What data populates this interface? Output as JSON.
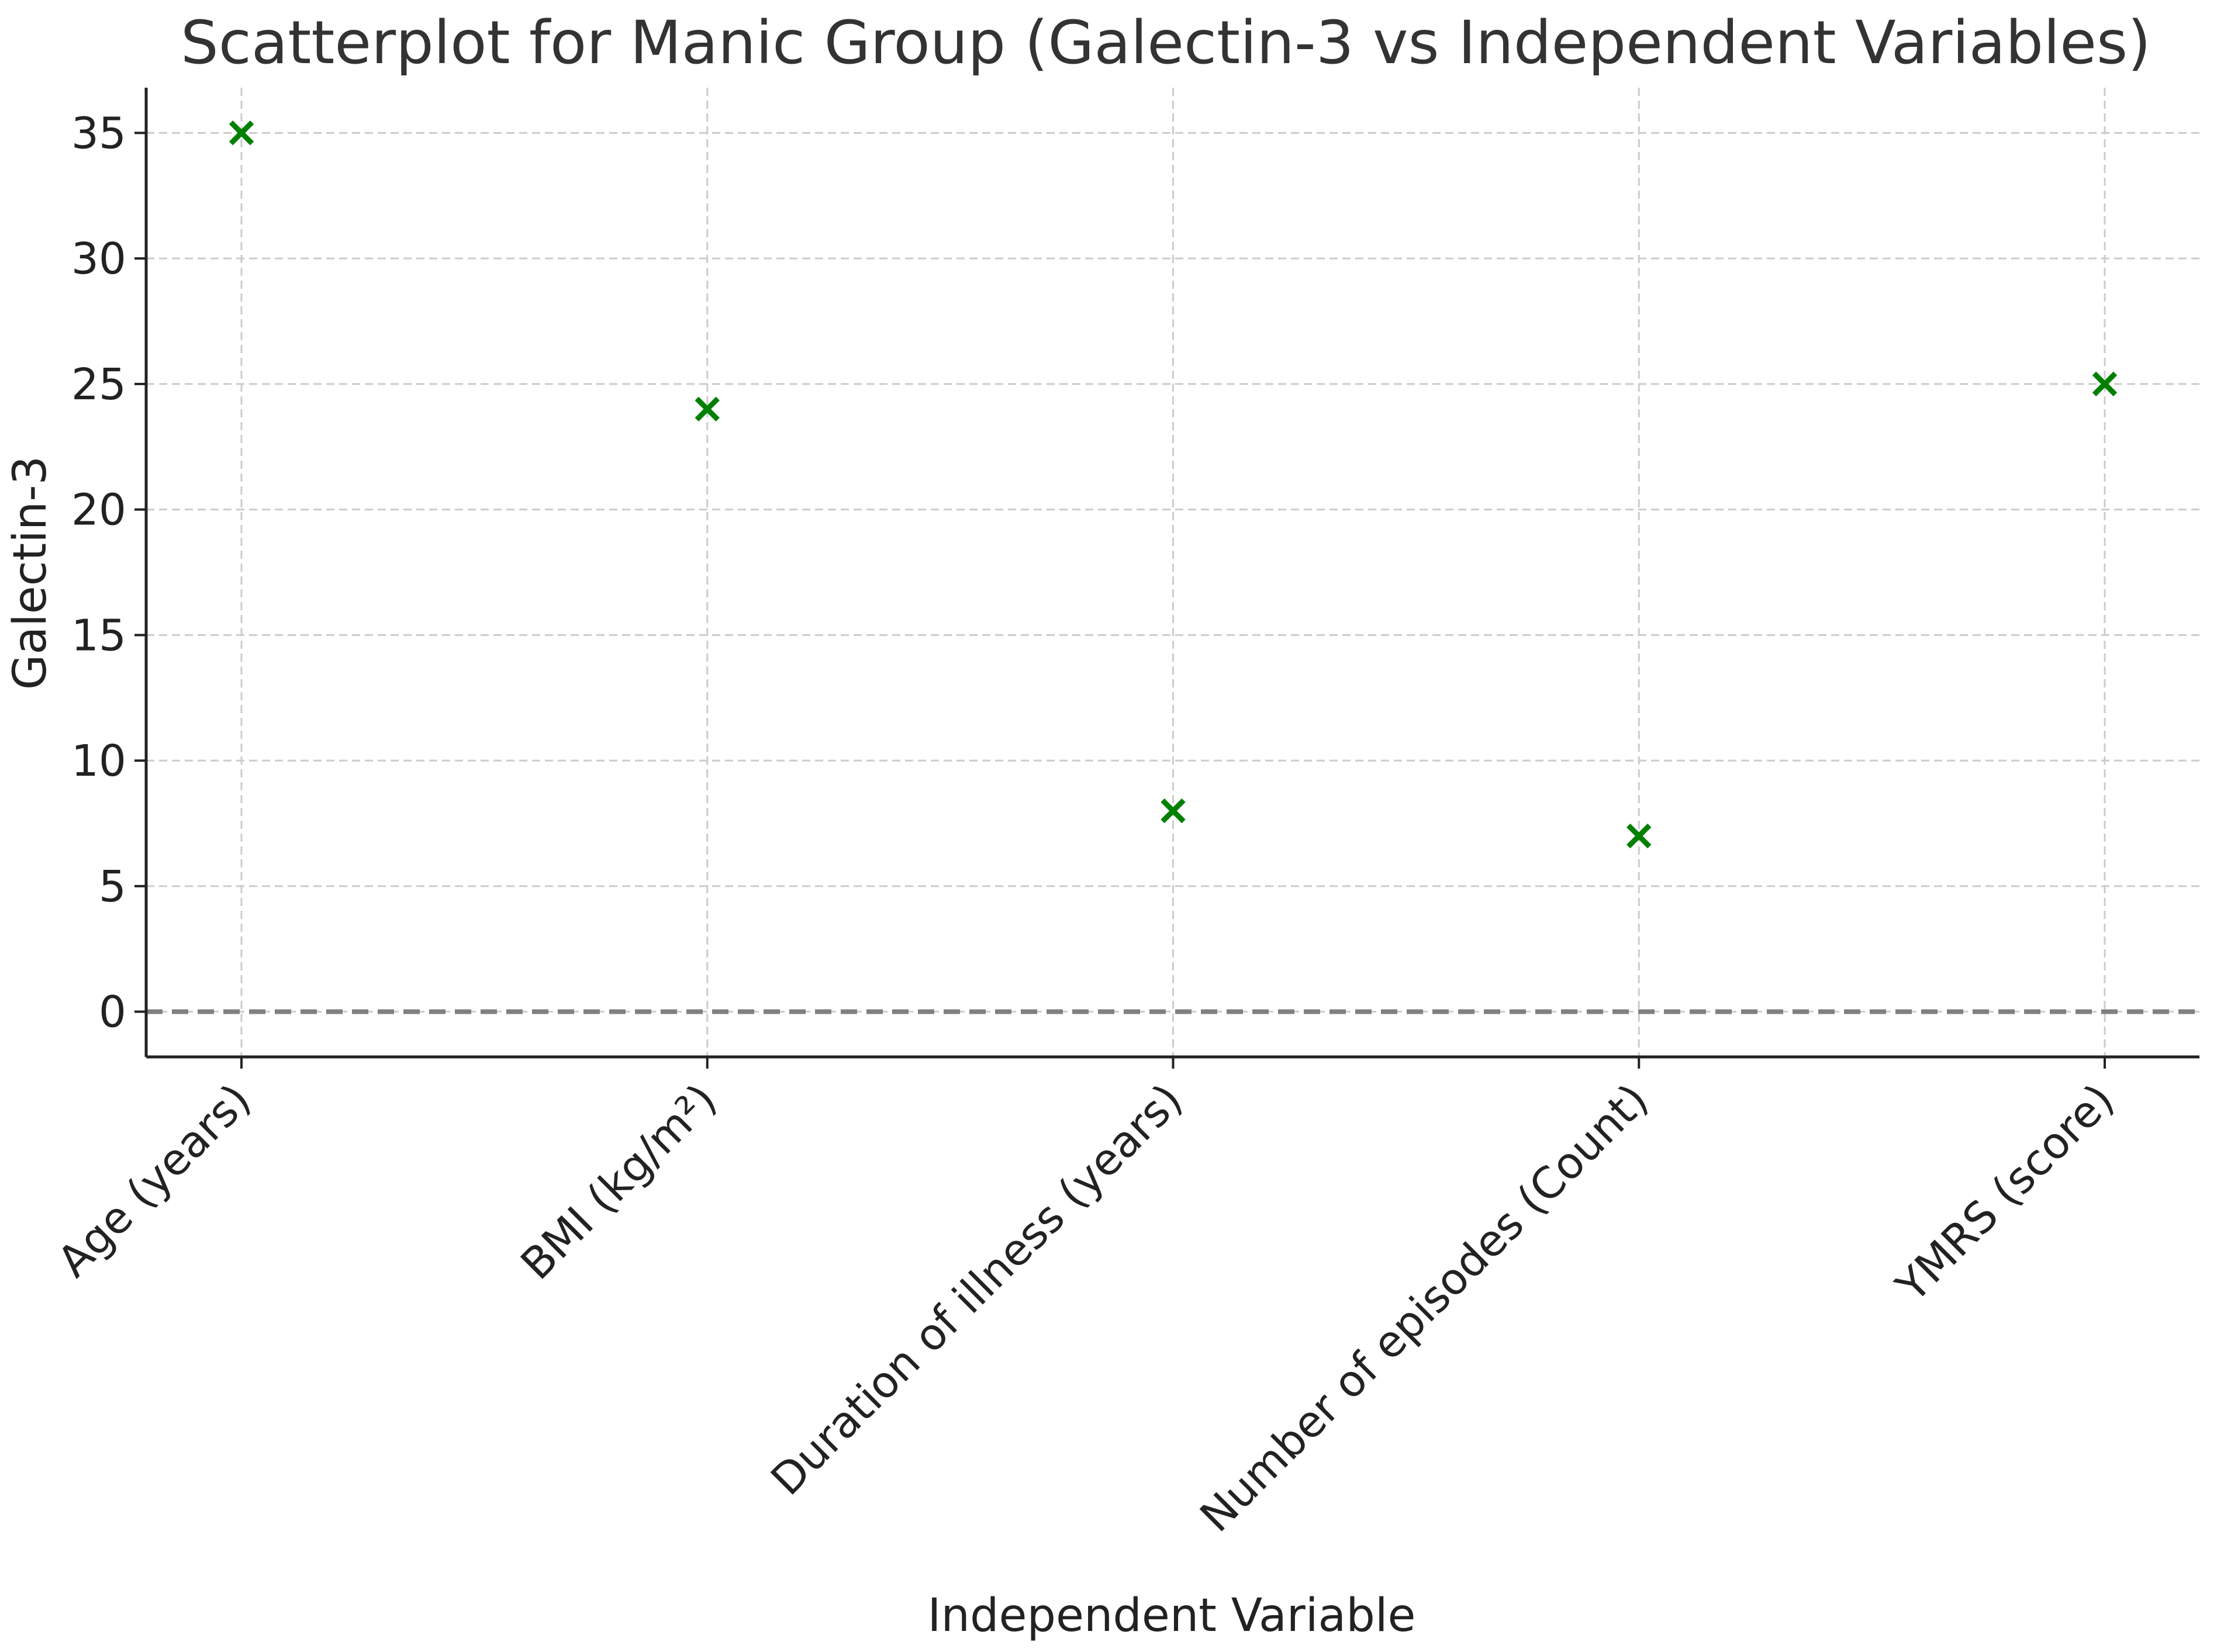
{
  "chart_data": {
    "type": "scatter",
    "title": "Scatterplot for Manic Group (Galectin-3 vs Independent Variables)",
    "xlabel": "Independent Variable",
    "ylabel": "Galectin-3",
    "categories": [
      "Age (years)",
      "BMI (kg/m²)",
      "Duration of illness (years)",
      "Number of episodes (Count)",
      "YMRS (score)"
    ],
    "values": [
      35,
      24,
      8,
      7,
      25
    ],
    "ylim": [
      -1.8,
      36.8
    ],
    "yticks": [
      0,
      5,
      10,
      15,
      20,
      25,
      30,
      35
    ],
    "grid": true,
    "marker": "x",
    "marker_color": "#008000",
    "reference_line": {
      "y": 0,
      "style": "dashed",
      "color": "#808080"
    }
  }
}
